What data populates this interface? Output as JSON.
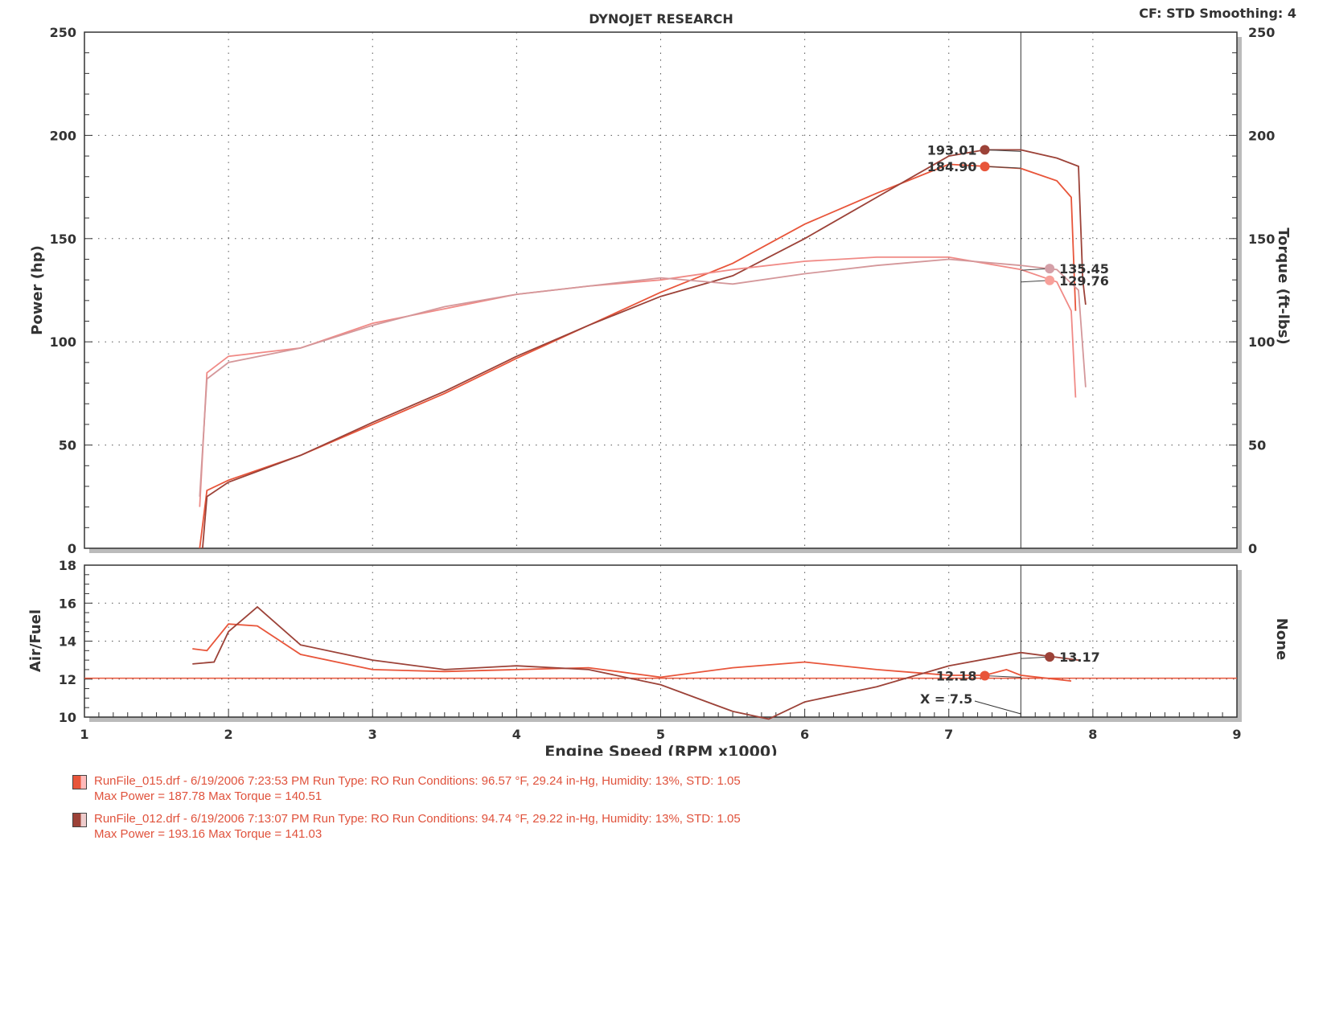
{
  "chart_data": [
    {
      "type": "line",
      "title": "DYNOJET RESEARCH",
      "header_right": "CF: STD  Smoothing: 4",
      "xlabel": "Engine Speed (RPM x1000)",
      "ylabel": "Power (hp)",
      "y2label": "Torque (ft-lbs)",
      "xlim": [
        1,
        9
      ],
      "ylim": [
        0,
        250
      ],
      "y2lim": [
        0,
        250
      ],
      "xticks": [
        "1",
        "2",
        "3",
        "4",
        "5",
        "6",
        "7",
        "8",
        "9"
      ],
      "yticks": [
        "0",
        "50",
        "100",
        "150",
        "200",
        "250"
      ],
      "grid": true,
      "cursor_x": 7.5,
      "series": [
        {
          "name": "RunFile_015 Power",
          "axis": "left",
          "color": "#e8553a",
          "x": [
            1.8,
            1.85,
            2,
            2.5,
            3,
            3.5,
            4,
            4.5,
            5,
            5.5,
            6,
            6.5,
            7,
            7.25,
            7.5,
            7.75,
            7.85,
            7.88
          ],
          "y": [
            0,
            28,
            33,
            45,
            60,
            75,
            92,
            108,
            124,
            138,
            157,
            172,
            186,
            185,
            184,
            178,
            170,
            115
          ]
        },
        {
          "name": "RunFile_012 Power",
          "axis": "left",
          "color": "#9c4238",
          "x": [
            1.82,
            1.85,
            2,
            2.5,
            3,
            3.5,
            4,
            4.5,
            5,
            5.5,
            6,
            6.5,
            7,
            7.25,
            7.5,
            7.75,
            7.9,
            7.93,
            7.95
          ],
          "y": [
            0,
            25,
            32,
            45,
            61,
            76,
            93,
            108,
            122,
            132,
            150,
            170,
            190,
            193,
            193,
            189,
            185,
            130,
            118
          ]
        },
        {
          "name": "RunFile_015 Torque",
          "axis": "right",
          "color": "#f08a86",
          "x": [
            1.8,
            1.85,
            2,
            2.5,
            3,
            3.5,
            4,
            4.5,
            5,
            5.5,
            6,
            6.5,
            7,
            7.5,
            7.75,
            7.85,
            7.88
          ],
          "y": [
            20,
            85,
            93,
            97,
            109,
            116,
            123,
            127,
            130,
            135,
            139,
            141,
            141,
            135,
            129,
            115,
            73
          ]
        },
        {
          "name": "RunFile_012 Torque",
          "axis": "right",
          "color": "#d4979a",
          "x": [
            1.8,
            1.85,
            2,
            2.5,
            3,
            3.5,
            4,
            4.5,
            5,
            5.5,
            6,
            6.5,
            7,
            7.5,
            7.75,
            7.9,
            7.95
          ],
          "y": [
            25,
            82,
            90,
            97,
            108,
            117,
            123,
            127,
            131,
            128,
            133,
            137,
            140,
            137,
            135,
            125,
            78
          ]
        }
      ],
      "markers": [
        {
          "label": "193.01",
          "x": 7.25,
          "y": 193.01,
          "color": "#9c4238"
        },
        {
          "label": "184.90",
          "x": 7.25,
          "y": 184.9,
          "color": "#e8553a"
        },
        {
          "label": "135.45",
          "x": 7.7,
          "y": 135.45,
          "color": "#d4a0a8"
        },
        {
          "label": "129.76",
          "x": 7.7,
          "y": 129.76,
          "color": "#f7a09a"
        }
      ]
    },
    {
      "type": "line",
      "ylabel": "Air/Fuel",
      "y2label": "None",
      "xlim": [
        1,
        9
      ],
      "ylim": [
        10,
        18
      ],
      "yticks": [
        "10",
        "12",
        "14",
        "16",
        "18"
      ],
      "reference_line": 12.05,
      "cursor_label": "X = 7.5",
      "series": [
        {
          "name": "RunFile_015 Air/Fuel",
          "color": "#e8553a",
          "x": [
            1.75,
            1.85,
            2,
            2.2,
            2.5,
            3,
            3.5,
            4,
            4.5,
            5,
            5.5,
            6,
            6.5,
            7,
            7.25,
            7.4,
            7.5,
            7.85
          ],
          "y": [
            13.6,
            13.5,
            14.9,
            14.8,
            13.3,
            12.5,
            12.4,
            12.5,
            12.6,
            12.1,
            12.6,
            12.9,
            12.5,
            12.2,
            12.2,
            12.5,
            12.2,
            11.9
          ]
        },
        {
          "name": "RunFile_012 Air/Fuel",
          "color": "#9c4238",
          "x": [
            1.75,
            1.9,
            2,
            2.2,
            2.5,
            3,
            3.5,
            4,
            4.5,
            5,
            5.5,
            5.75,
            6,
            6.5,
            7,
            7.5,
            7.9
          ],
          "y": [
            12.8,
            12.9,
            14.5,
            15.8,
            13.8,
            13.0,
            12.5,
            12.7,
            12.5,
            11.7,
            10.3,
            9.9,
            10.8,
            11.6,
            12.7,
            13.4,
            13.0
          ]
        }
      ],
      "markers": [
        {
          "label": "13.17",
          "x": 7.7,
          "y": 13.17,
          "color": "#9c4238"
        },
        {
          "label": "12.18",
          "x": 7.25,
          "y": 12.18,
          "color": "#e8553a"
        }
      ]
    }
  ],
  "legend": [
    {
      "line1": "RunFile_015.drf - 6/19/2006 7:23:53 PM  Run Type: RO  Run Conditions: 96.57 °F, 29.24 in-Hg,  Humidity:  13%, STD: 1.05",
      "line2": "Max Power = 187.78  Max Torque = 140.51",
      "color": "#e8553a"
    },
    {
      "line1": "RunFile_012.drf - 6/19/2006 7:13:07 PM  Run Type: RO  Run Conditions: 94.74 °F, 29.22 in-Hg,  Humidity:  13%, STD: 1.05",
      "line2": "Max Power = 193.16  Max Torque = 141.03",
      "color": "#9c4238"
    }
  ]
}
